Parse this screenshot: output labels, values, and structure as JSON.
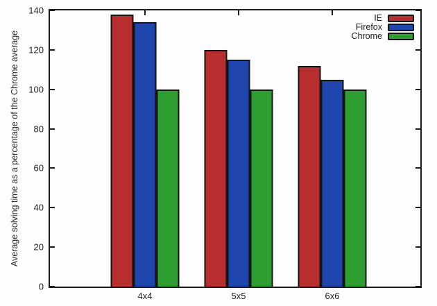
{
  "chart_data": {
    "type": "bar",
    "title": "",
    "categories": [
      "4x4",
      "5x5",
      "6x6"
    ],
    "series": [
      {
        "name": "IE",
        "color": "#b82e2e",
        "values": [
          138,
          120,
          112
        ]
      },
      {
        "name": "Firefox",
        "color": "#1f46ad",
        "values": [
          134,
          115,
          105
        ]
      },
      {
        "name": "Chrome",
        "color": "#2f9e30",
        "values": [
          100,
          100,
          100
        ]
      }
    ],
    "xlabel": "",
    "ylabel": "Average solving time as a percentage of the Chrome average",
    "ylim": [
      0,
      140
    ],
    "ytick_step": 20,
    "yticks": [
      0,
      20,
      40,
      60,
      80,
      100,
      120,
      140
    ],
    "grid": false,
    "legend_position": "top-right",
    "axis_color": "#1b1b1b",
    "background_color": "#fdfdfd"
  }
}
